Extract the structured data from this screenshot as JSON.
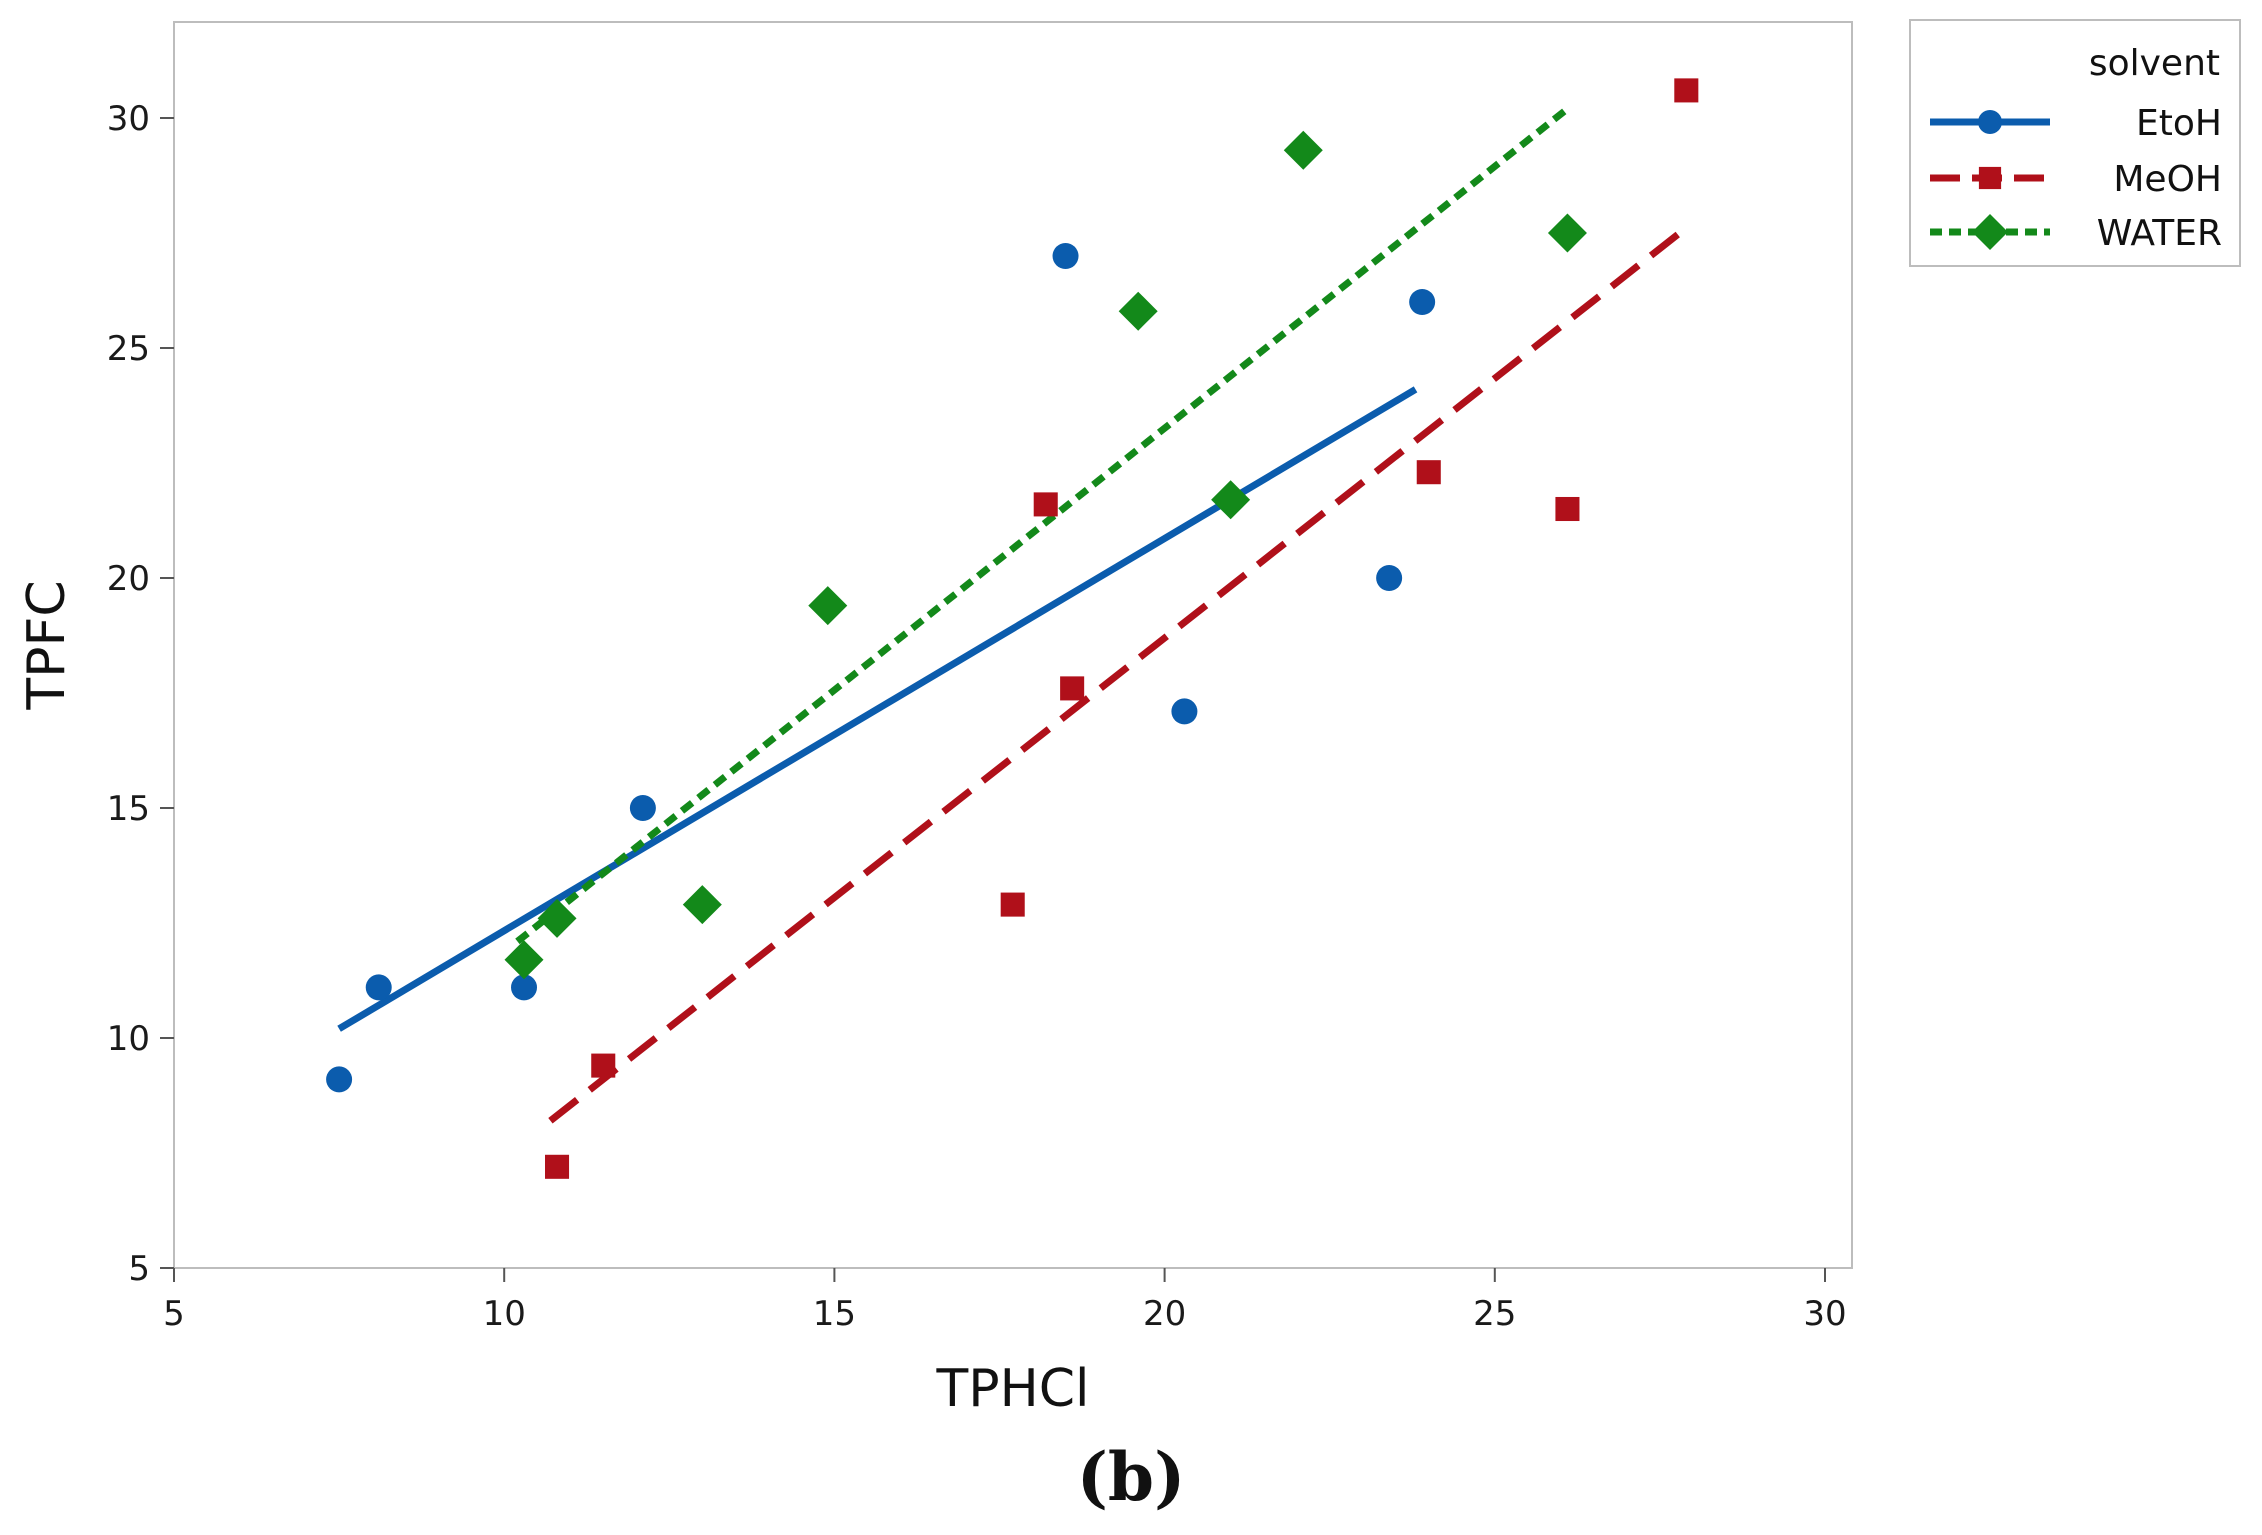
{
  "chart_data": {
    "type": "scatter",
    "xlabel": "TPHCl",
    "ylabel": "TPFC",
    "caption": "(b)",
    "xlim": [
      5,
      30.5
    ],
    "ylim": [
      5,
      32
    ],
    "xticks": [
      5,
      10,
      15,
      20,
      25,
      30
    ],
    "yticks": [
      5,
      10,
      15,
      20,
      25,
      30
    ],
    "xtick_labels": [
      "5",
      "10",
      "15",
      "20",
      "25",
      "30"
    ],
    "ytick_labels": [
      "5",
      "10",
      "15",
      "20",
      "25",
      "30"
    ],
    "legend": {
      "title": "solvent",
      "position": "outside-top-right"
    },
    "series": [
      {
        "name": "EtoH",
        "color": "#0b5cad",
        "marker": "circle",
        "line_style": "solid",
        "points": [
          {
            "x": 7.5,
            "y": 9.1
          },
          {
            "x": 8.1,
            "y": 11.1
          },
          {
            "x": 10.3,
            "y": 11.1
          },
          {
            "x": 12.1,
            "y": 15.0
          },
          {
            "x": 18.5,
            "y": 27.0
          },
          {
            "x": 20.3,
            "y": 17.1
          },
          {
            "x": 23.4,
            "y": 20.0
          },
          {
            "x": 23.9,
            "y": 26.0
          }
        ],
        "fit": {
          "x": [
            7.5,
            23.8
          ],
          "y": [
            10.2,
            24.1
          ]
        }
      },
      {
        "name": "MeOH",
        "color": "#b0101a",
        "marker": "square",
        "line_style": "dashed",
        "points": [
          {
            "x": 10.8,
            "y": 7.2
          },
          {
            "x": 11.5,
            "y": 9.4
          },
          {
            "x": 17.7,
            "y": 12.9
          },
          {
            "x": 18.2,
            "y": 21.6
          },
          {
            "x": 18.6,
            "y": 17.6
          },
          {
            "x": 24.0,
            "y": 22.3
          },
          {
            "x": 26.1,
            "y": 21.5
          },
          {
            "x": 27.9,
            "y": 30.6
          }
        ],
        "fit": {
          "x": [
            10.7,
            27.8
          ],
          "y": [
            8.2,
            27.5
          ]
        }
      },
      {
        "name": "WATER",
        "color": "#13891a",
        "marker": "diamond",
        "line_style": "dotted",
        "points": [
          {
            "x": 10.3,
            "y": 11.7
          },
          {
            "x": 10.8,
            "y": 12.6
          },
          {
            "x": 13.0,
            "y": 12.9
          },
          {
            "x": 14.9,
            "y": 19.4
          },
          {
            "x": 19.6,
            "y": 25.8
          },
          {
            "x": 21.0,
            "y": 21.7
          },
          {
            "x": 22.1,
            "y": 29.3
          },
          {
            "x": 26.1,
            "y": 27.5
          }
        ],
        "fit": {
          "x": [
            10.2,
            26.1
          ],
          "y": [
            12.1,
            30.2
          ]
        }
      }
    ]
  }
}
